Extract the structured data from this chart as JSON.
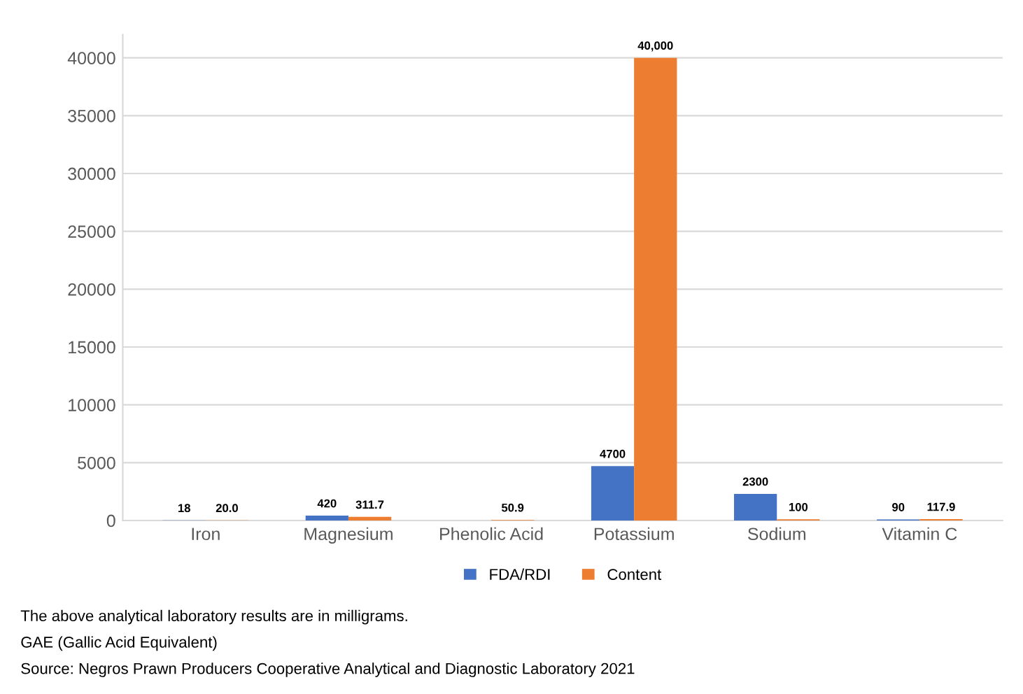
{
  "chart_data": {
    "type": "bar",
    "categories": [
      "Iron",
      "Magnesium",
      "Phenolic Acid",
      "Potassium",
      "Sodium",
      "Vitamin C"
    ],
    "series": [
      {
        "name": "FDA/RDI",
        "color": "#4472c4",
        "values": [
          18,
          420,
          null,
          4700,
          2300,
          90
        ],
        "value_labels": [
          "18",
          "420",
          null,
          "4700",
          "2300",
          "90"
        ]
      },
      {
        "name": "Content",
        "color": "#ed7d31",
        "values": [
          20.0,
          311.7,
          50.9,
          40000,
          100,
          117.9
        ],
        "value_labels": [
          "20.0",
          "311.7",
          "50.9",
          "40,000",
          "100",
          "117.9"
        ]
      }
    ],
    "ylim": [
      0,
      42000
    ],
    "yticks": [
      0,
      5000,
      10000,
      15000,
      20000,
      25000,
      30000,
      35000,
      40000
    ],
    "grid": "y",
    "legend": "bottom",
    "annotations": [
      "The above analytical laboratory results are in milligrams.",
      "GAE (Gallic Acid Equivalent)",
      "Source: Negros Prawn Producers Cooperative Analytical and Diagnostic Laboratory 2021"
    ]
  }
}
